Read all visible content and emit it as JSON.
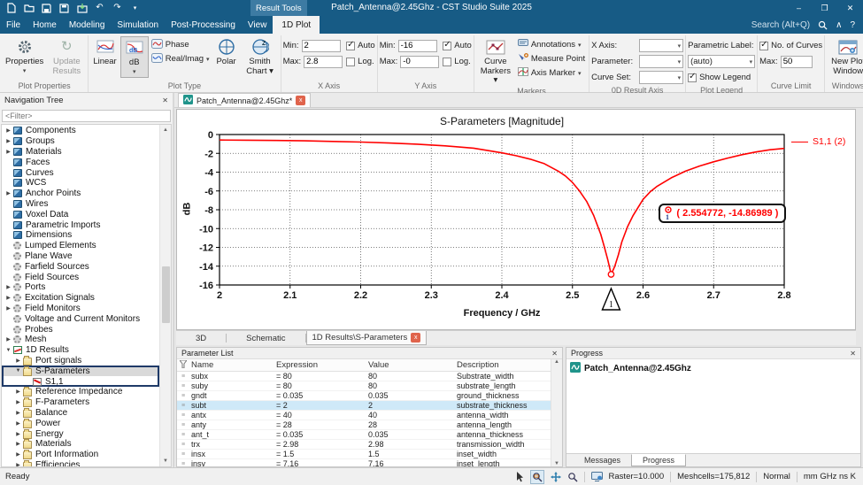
{
  "titlebar": {
    "title": "Patch_Antenna@2.45Ghz - CST Studio Suite 2025",
    "contextual_group": "Result Tools",
    "minimize": "–",
    "maximize": "❐",
    "close": "✕",
    "undo": "↶",
    "redo": "↷",
    "qat_more": "▾"
  },
  "menu": {
    "tabs": [
      "File",
      "Home",
      "Modeling",
      "Simulation",
      "Post-Processing",
      "View"
    ],
    "active_tab": "1D Plot",
    "search_placeholder": "Search (Alt+Q)",
    "collapse_icon": "∧",
    "help_icon": "?"
  },
  "ribbon": {
    "plot_properties": {
      "label": "Plot Properties",
      "properties": "Properties",
      "properties_arrow": "▾",
      "update_results": "Update Results"
    },
    "plot_type": {
      "label": "Plot Type",
      "linear": "Linear",
      "db": "dB",
      "db_arrow": "▾",
      "phase": "Phase",
      "real_imag": "Real/Imag",
      "real_imag_arrow": "▾",
      "polar": "Polar",
      "smith": "Smith Chart ▾"
    },
    "x_axis": {
      "label": "X Axis",
      "min_label": "Min:",
      "min": "2",
      "max_label": "Max:",
      "max": "2.8",
      "auto": "Auto",
      "log": "Log.",
      "auto_checked": true,
      "log_checked": false
    },
    "y_axis": {
      "label": "Y Axis",
      "min_label": "Min:",
      "min": "-16",
      "max_label": "Max:",
      "max": "-0",
      "auto": "Auto",
      "log": "Log.",
      "auto_checked": true,
      "log_checked": false
    },
    "markers": {
      "label": "Markers",
      "curve_markers": "Curve Markers ▾",
      "annotations": "Annotations",
      "annotations_arrow": "▾",
      "measure_point": "Measure Point",
      "axis_marker": "Axis Marker",
      "axis_marker_arrow": "▾"
    },
    "od_result_axis": {
      "label": "0D Result Axis",
      "x_axis": "X Axis:",
      "parameter": "Parameter:",
      "curve_set": "Curve Set:"
    },
    "plot_legend": {
      "label": "Plot Legend",
      "parametric_label": "Parametric Label:",
      "auto_value": "(auto)",
      "show_legend": "Show Legend",
      "show_legend_checked": true
    },
    "curve_limit": {
      "label": "Curve Limit",
      "no_of_curves": "No. of Curves",
      "no_of_curves_checked": true,
      "max_label": "Max:",
      "max": "50"
    },
    "windows": {
      "label": "Windows",
      "new_plot": "New Plot Window"
    }
  },
  "nav_tree": {
    "header": "Navigation Tree",
    "close": "✕",
    "filter_placeholder": "<Filter>",
    "items": [
      {
        "label": "Components",
        "icon": "cube",
        "arrow": "right",
        "indent": 0
      },
      {
        "label": "Groups",
        "icon": "cube",
        "arrow": "right",
        "indent": 0
      },
      {
        "label": "Materials",
        "icon": "cube",
        "arrow": "right",
        "indent": 0
      },
      {
        "label": "Faces",
        "icon": "cube",
        "arrow": "none",
        "indent": 0
      },
      {
        "label": "Curves",
        "icon": "cube",
        "arrow": "none",
        "indent": 0
      },
      {
        "label": "WCS",
        "icon": "cube",
        "arrow": "none",
        "indent": 0
      },
      {
        "label": "Anchor Points",
        "icon": "cube",
        "arrow": "right",
        "indent": 0
      },
      {
        "label": "Wires",
        "icon": "cube",
        "arrow": "none",
        "indent": 0
      },
      {
        "label": "Voxel Data",
        "icon": "cube",
        "arrow": "none",
        "indent": 0
      },
      {
        "label": "Parametric Imports",
        "icon": "cube",
        "arrow": "none",
        "indent": 0
      },
      {
        "label": "Dimensions",
        "icon": "cube",
        "arrow": "none",
        "indent": 0
      },
      {
        "label": "Lumped Elements",
        "icon": "gear",
        "arrow": "none",
        "indent": 0
      },
      {
        "label": "Plane Wave",
        "icon": "gear",
        "arrow": "none",
        "indent": 0
      },
      {
        "label": "Farfield Sources",
        "icon": "gear",
        "arrow": "none",
        "indent": 0
      },
      {
        "label": "Field Sources",
        "icon": "gear",
        "arrow": "none",
        "indent": 0
      },
      {
        "label": "Ports",
        "icon": "gear",
        "arrow": "right",
        "indent": 0
      },
      {
        "label": "Excitation Signals",
        "icon": "gear",
        "arrow": "right",
        "indent": 0
      },
      {
        "label": "Field Monitors",
        "icon": "gear",
        "arrow": "right",
        "indent": 0
      },
      {
        "label": "Voltage and Current Monitors",
        "icon": "gear",
        "arrow": "none",
        "indent": 0
      },
      {
        "label": "Probes",
        "icon": "gear",
        "arrow": "none",
        "indent": 0
      },
      {
        "label": "Mesh",
        "icon": "gear",
        "arrow": "right",
        "indent": 0
      },
      {
        "label": "1D Results",
        "icon": "chart",
        "arrow": "down",
        "indent": 0
      },
      {
        "label": "Port signals",
        "icon": "folder",
        "arrow": "right",
        "indent": 1
      },
      {
        "label": "S-Parameters",
        "icon": "folder",
        "arrow": "down",
        "indent": 1,
        "state": "selected frame-top"
      },
      {
        "label": "S1,1",
        "icon": "s11",
        "arrow": "none",
        "indent": 2,
        "state": "frame-bottom"
      },
      {
        "label": "Reference Impedance",
        "icon": "folder",
        "arrow": "right",
        "indent": 1
      },
      {
        "label": "F-Parameters",
        "icon": "folder",
        "arrow": "right",
        "indent": 1
      },
      {
        "label": "Balance",
        "icon": "folder",
        "arrow": "right",
        "indent": 1
      },
      {
        "label": "Power",
        "icon": "folder",
        "arrow": "right",
        "indent": 1
      },
      {
        "label": "Energy",
        "icon": "folder",
        "arrow": "right",
        "indent": 1
      },
      {
        "label": "Materials",
        "icon": "folder",
        "arrow": "right",
        "indent": 1
      },
      {
        "label": "Port Information",
        "icon": "folder",
        "arrow": "right",
        "indent": 1
      },
      {
        "label": "Efficiencies",
        "icon": "folder",
        "arrow": "right",
        "indent": 1
      }
    ]
  },
  "document_tab": {
    "title": "Patch_Antenna@2.45Ghz*",
    "close": "x"
  },
  "view_tabs": {
    "t3d": "3D",
    "schematic": "Schematic",
    "active": "1D Results\\S-Parameters",
    "close": "x"
  },
  "chart_data": {
    "type": "line",
    "title": "S-Parameters [Magnitude]",
    "xlabel": "Frequency / GHz",
    "ylabel": "dB",
    "xlim": [
      2,
      2.8
    ],
    "ylim": [
      -16,
      0
    ],
    "xticks": [
      2,
      2.1,
      2.2,
      2.3,
      2.4,
      2.5,
      2.6,
      2.7,
      2.8
    ],
    "yticks": [
      0,
      -2,
      -4,
      -6,
      -8,
      -10,
      -12,
      -14,
      -16
    ],
    "grid": "dotted",
    "legend_position": "top-right-outside",
    "series": [
      {
        "name": "S1,1 (2)",
        "color": "#ff0000",
        "points": [
          [
            2.0,
            -0.58
          ],
          [
            2.04,
            -0.6
          ],
          [
            2.08,
            -0.63
          ],
          [
            2.12,
            -0.67
          ],
          [
            2.16,
            -0.73
          ],
          [
            2.2,
            -0.8
          ],
          [
            2.24,
            -0.9
          ],
          [
            2.28,
            -1.03
          ],
          [
            2.32,
            -1.2
          ],
          [
            2.36,
            -1.45
          ],
          [
            2.4,
            -1.95
          ],
          [
            2.42,
            -2.25
          ],
          [
            2.44,
            -2.62
          ],
          [
            2.46,
            -3.1
          ],
          [
            2.48,
            -3.9
          ],
          [
            2.49,
            -4.4
          ],
          [
            2.5,
            -5.1
          ],
          [
            2.51,
            -6.0
          ],
          [
            2.52,
            -7.1
          ],
          [
            2.53,
            -8.6
          ],
          [
            2.54,
            -10.6
          ],
          [
            2.545,
            -11.9
          ],
          [
            2.55,
            -13.3
          ],
          [
            2.5548,
            -14.87
          ],
          [
            2.56,
            -14.0
          ],
          [
            2.565,
            -12.8
          ],
          [
            2.57,
            -11.4
          ],
          [
            2.578,
            -9.8
          ],
          [
            2.586,
            -8.6
          ],
          [
            2.6,
            -6.9
          ],
          [
            2.61,
            -6.1
          ],
          [
            2.62,
            -5.5
          ],
          [
            2.64,
            -4.6
          ],
          [
            2.66,
            -3.9
          ],
          [
            2.68,
            -3.35
          ],
          [
            2.7,
            -2.9
          ],
          [
            2.72,
            -2.5
          ],
          [
            2.74,
            -2.15
          ],
          [
            2.76,
            -1.85
          ],
          [
            2.78,
            -1.62
          ],
          [
            2.8,
            -1.48
          ]
        ]
      }
    ],
    "marker": {
      "x": 2.554772,
      "y": -14.86989,
      "label": "( 2.554772, -14.86989 )",
      "index": "1"
    }
  },
  "parameter_list": {
    "header": "Parameter List",
    "close": "✕",
    "columns": {
      "name": "Name",
      "expression": "Expression",
      "value": "Value",
      "description": "Description"
    },
    "rows": [
      {
        "name": "subx",
        "expression": "= 80",
        "value": "80",
        "description": "Substrate_width"
      },
      {
        "name": "suby",
        "expression": "= 80",
        "value": "80",
        "description": "substrate_length"
      },
      {
        "name": "gndt",
        "expression": "= 0.035",
        "value": "0.035",
        "description": "ground_thickness"
      },
      {
        "name": "subt",
        "expression": "= 2",
        "value": "2",
        "description": "substrate_thickness",
        "state": "hl"
      },
      {
        "name": "antx",
        "expression": "= 40",
        "value": "40",
        "description": "antenna_width"
      },
      {
        "name": "anty",
        "expression": "= 28",
        "value": "28",
        "description": "antenna_length"
      },
      {
        "name": "ant_t",
        "expression": "= 0.035",
        "value": "0.035",
        "description": "antenna_thickness"
      },
      {
        "name": "trx",
        "expression": "= 2.98",
        "value": "2.98",
        "description": "transmission_width"
      },
      {
        "name": "insx",
        "expression": "= 1.5",
        "value": "1.5",
        "description": "inset_width"
      },
      {
        "name": "insy",
        "expression": "= 7.16",
        "value": "7.16",
        "description": "inset_length"
      }
    ]
  },
  "progress": {
    "header": "Progress",
    "close": "✕",
    "item": "Patch_Antenna@2.45Ghz",
    "tab_messages": "Messages",
    "tab_progress": "Progress"
  },
  "status_bar": {
    "ready": "Ready",
    "raster": "Raster=10.000",
    "meshcells": "Meshcells=175,812",
    "normal": "Normal",
    "units": "mm  GHz  ns  K"
  }
}
